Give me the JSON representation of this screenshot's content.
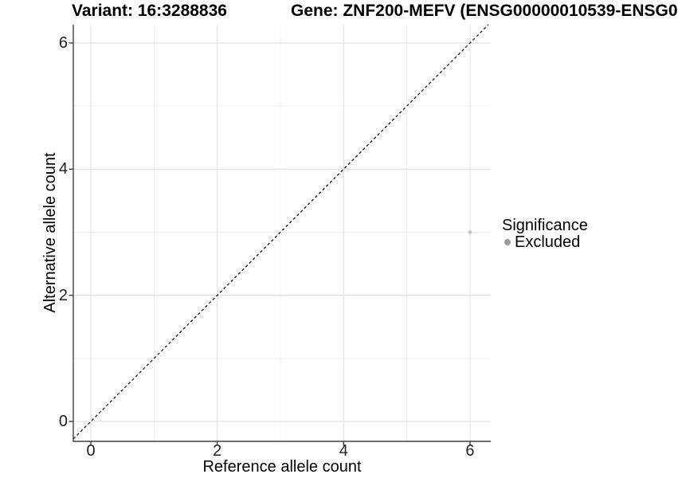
{
  "chart_data": {
    "type": "scatter",
    "title_variant": "Variant: 16:3288836",
    "title_gene": "Gene: ZNF200-MEFV (ENSG00000010539-ENSG0",
    "xlabel": "Reference allele count",
    "ylabel": "Alternative allele count",
    "x_ticks": [
      0,
      2,
      4,
      6
    ],
    "y_ticks": [
      0,
      2,
      4,
      6
    ],
    "x_minor_ticks": [
      1,
      3,
      5
    ],
    "y_minor_ticks": [
      1,
      3,
      5
    ],
    "xlim": [
      -0.28,
      6.33
    ],
    "ylim": [
      -0.32,
      6.29
    ],
    "grid": true,
    "points": [
      {
        "x": 6,
        "y": 3,
        "significance": "Excluded"
      }
    ],
    "identity_line": {
      "style": "dashed",
      "slope": 1,
      "intercept": 0
    },
    "legend": {
      "position": "right",
      "title": "Significance",
      "items": [
        {
          "label": "Excluded",
          "color": "#9a9a9a"
        }
      ]
    },
    "colors": {
      "background": "#ffffff",
      "point": "#c4c4c4",
      "identity_line": "#000000",
      "axis_line": "#424242",
      "tick_mark": "#383838",
      "tick_label": "#1f1f1f",
      "grid_major": "#e3e3e3",
      "grid_minor": "#f0f0f0",
      "title": "#000000"
    }
  }
}
